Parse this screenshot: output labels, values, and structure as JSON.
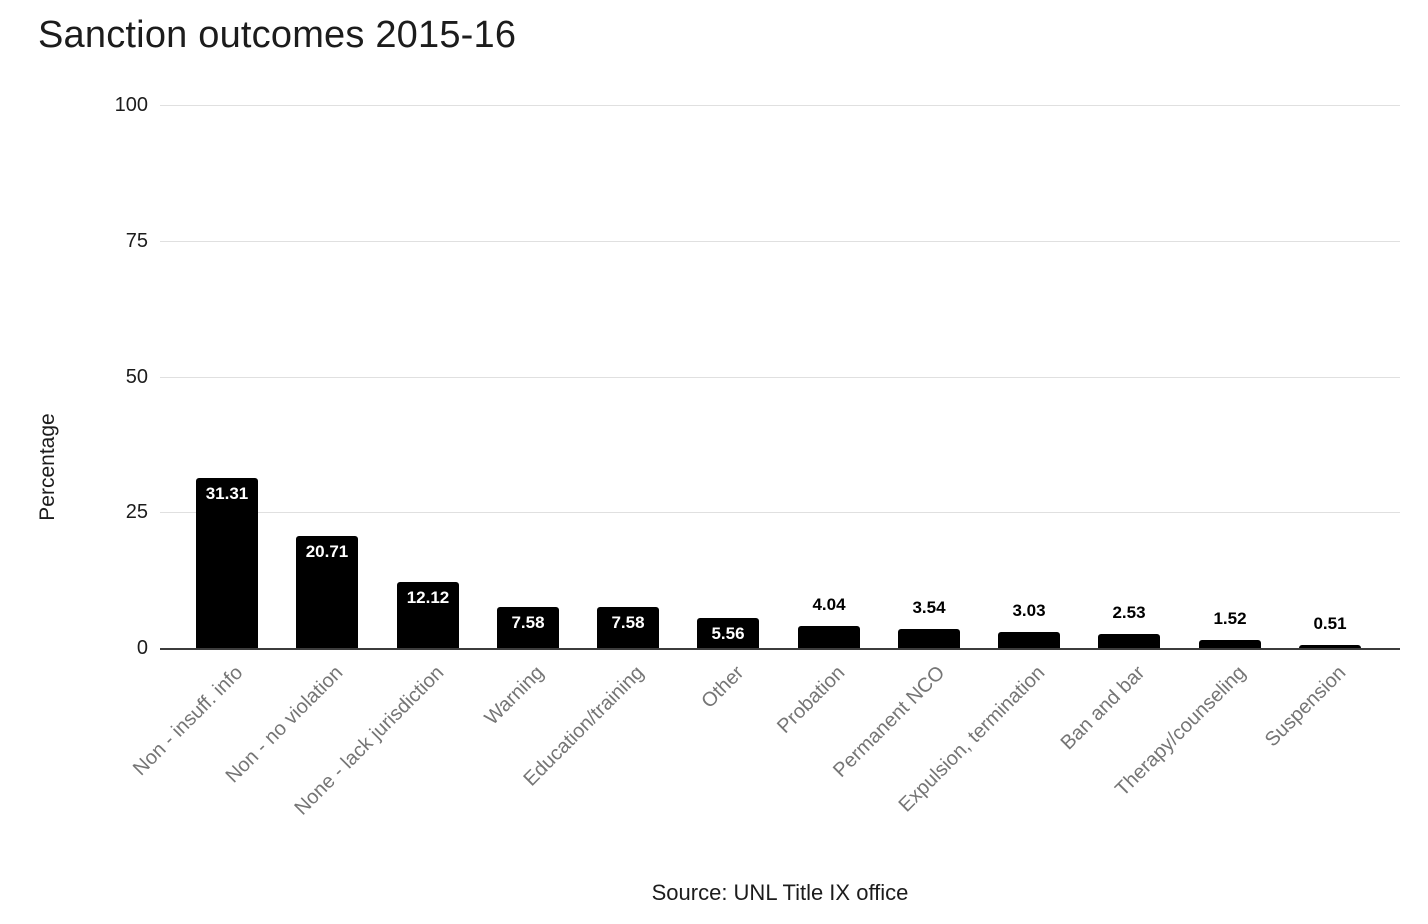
{
  "chart_data": {
    "type": "bar",
    "title": "Sanction outcomes 2015-16",
    "xlabel": "",
    "ylabel": "Percentage",
    "source": "Source: UNL Title IX office",
    "ylim": [
      0,
      100
    ],
    "yticks": [
      0,
      25,
      50,
      75,
      100
    ],
    "grid": true,
    "legend": "none",
    "categories": [
      "Non - insuff. info",
      "Non - no violation",
      "None - lack jurisdiction",
      "Warning",
      "Education/training",
      "Other",
      "Probation",
      "Permanent NCO",
      "Expulsion, termination",
      "Ban and bar",
      "Therapy/counseling",
      "Suspension"
    ],
    "values": [
      31.31,
      20.71,
      12.12,
      7.58,
      7.58,
      5.56,
      4.04,
      3.54,
      3.03,
      2.53,
      1.52,
      0.51
    ],
    "colors": {
      "bar": "#000000",
      "gridline": "#e0e0e0",
      "axis_line": "#3c3c3c",
      "tick_label": "#1c1c1c",
      "category_label": "#757575",
      "value_label_inside": "#ffffff",
      "value_label_outside": "#000000",
      "background": "#ffffff"
    }
  }
}
